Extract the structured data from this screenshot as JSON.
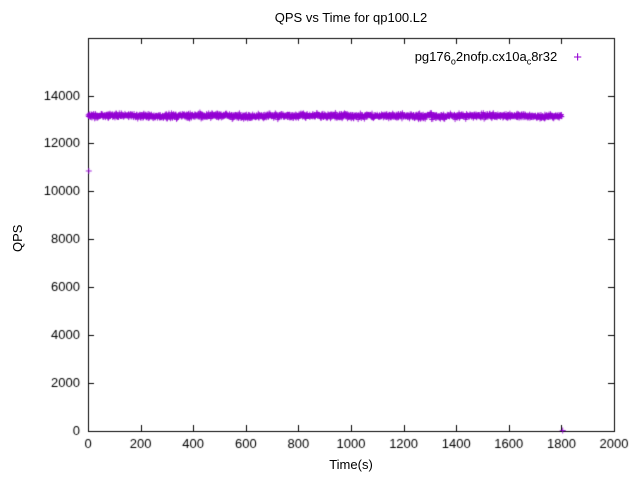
{
  "chart_data": {
    "type": "scatter",
    "title": "QPS vs Time for qp100.L2",
    "xlabel": "Time(s)",
    "ylabel": "QPS",
    "xlim": [
      0,
      2000
    ],
    "ylim": [
      0,
      16400
    ],
    "xticks": [
      0,
      200,
      400,
      600,
      800,
      1000,
      1200,
      1400,
      1600,
      1800,
      2000
    ],
    "yticks": [
      0,
      2000,
      4000,
      6000,
      8000,
      10000,
      12000,
      14000
    ],
    "grid": false,
    "legend_position": "top-right-inside",
    "series": [
      {
        "name": "pg176_o2nofp.cx10a_c8r32",
        "name_rich": [
          {
            "t": "pg176"
          },
          {
            "t": "o",
            "sub": true
          },
          {
            "t": "2nofp.cx10a"
          },
          {
            "t": "c",
            "sub": true
          },
          {
            "t": "8r32"
          }
        ],
        "marker": "plus",
        "marker_glyph": "+",
        "color": "#9400D3",
        "band": {
          "x_start": 0,
          "x_end": 1802,
          "y_mean": 13150,
          "y_spread": 95,
          "n_points": 1600,
          "seed": 42
        },
        "outliers": [
          [
            3,
            10850
          ],
          [
            1805,
            20
          ]
        ]
      }
    ]
  }
}
